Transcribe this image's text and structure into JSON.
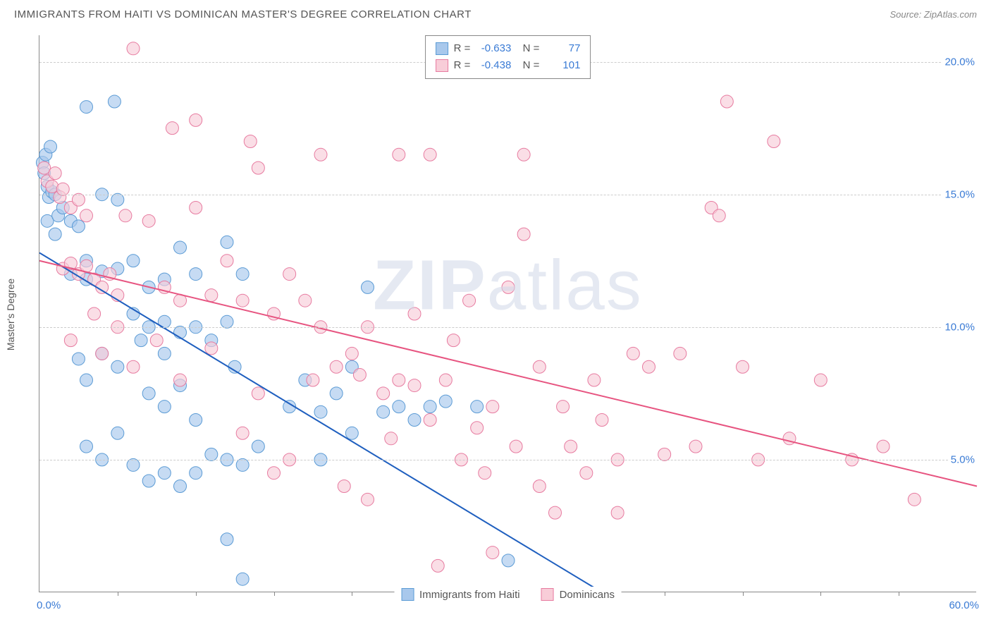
{
  "title": "IMMIGRANTS FROM HAITI VS DOMINICAN MASTER'S DEGREE CORRELATION CHART",
  "source": "Source: ZipAtlas.com",
  "watermark_bold": "ZIP",
  "watermark_light": "atlas",
  "chart": {
    "type": "scatter",
    "ylabel": "Master's Degree",
    "xlim": [
      0,
      60
    ],
    "ylim": [
      0,
      21
    ],
    "xtick_label_0": "0.0%",
    "xtick_label_60": "60.0%",
    "xtick_marks": [
      5,
      10,
      15,
      20,
      25,
      30,
      35,
      40,
      45,
      50,
      55
    ],
    "ytick_labels": [
      {
        "v": 5,
        "label": "5.0%"
      },
      {
        "v": 10,
        "label": "10.0%"
      },
      {
        "v": 15,
        "label": "15.0%"
      },
      {
        "v": 20,
        "label": "20.0%"
      }
    ],
    "colors": {
      "blue_fill": "#a8c8ec",
      "blue_stroke": "#5b9bd5",
      "blue_line": "#1f5fbf",
      "pink_fill": "#f8cdd8",
      "pink_stroke": "#e77ba0",
      "pink_line": "#e75480",
      "axis": "#888888",
      "grid": "#cccccc",
      "tick_text": "#3a7bd5",
      "body_text": "#555555",
      "background": "#ffffff"
    },
    "marker_radius": 9,
    "marker_opacity": 0.65,
    "line_width": 2,
    "series": [
      {
        "key": "haiti",
        "label": "Immigrants from Haiti",
        "color_fill": "#a8c8ec",
        "color_stroke": "#5b9bd5",
        "line_color": "#1f5fbf",
        "R": "-0.633",
        "N": "77",
        "regression": {
          "x1": 0,
          "y1": 12.8,
          "x2": 36,
          "y2": 0
        },
        "points": [
          [
            0.2,
            16.2
          ],
          [
            0.3,
            15.8
          ],
          [
            0.4,
            16.5
          ],
          [
            0.5,
            15.3
          ],
          [
            0.6,
            14.9
          ],
          [
            0.7,
            16.8
          ],
          [
            0.8,
            15.1
          ],
          [
            1.0,
            15.0
          ],
          [
            0.5,
            14.0
          ],
          [
            1.2,
            14.2
          ],
          [
            1.5,
            14.5
          ],
          [
            1.0,
            13.5
          ],
          [
            2.0,
            14.0
          ],
          [
            2.5,
            13.8
          ],
          [
            3.0,
            12.5
          ],
          [
            3.0,
            18.3
          ],
          [
            4.8,
            18.5
          ],
          [
            4.0,
            15.0
          ],
          [
            5.0,
            14.8
          ],
          [
            2.0,
            12.0
          ],
          [
            3.0,
            11.8
          ],
          [
            4.0,
            12.1
          ],
          [
            5.0,
            12.2
          ],
          [
            6.0,
            12.5
          ],
          [
            7.0,
            11.5
          ],
          [
            8.0,
            11.8
          ],
          [
            9.0,
            13.0
          ],
          [
            10.0,
            12.0
          ],
          [
            12.0,
            13.2
          ],
          [
            13.0,
            12.0
          ],
          [
            2.5,
            8.8
          ],
          [
            4.0,
            9.0
          ],
          [
            3.0,
            8.0
          ],
          [
            5.0,
            8.5
          ],
          [
            6.0,
            10.5
          ],
          [
            7.0,
            10.0
          ],
          [
            8.0,
            10.2
          ],
          [
            6.5,
            9.5
          ],
          [
            8.0,
            9.0
          ],
          [
            9.0,
            9.8
          ],
          [
            10.0,
            10.0
          ],
          [
            11.0,
            9.5
          ],
          [
            12.0,
            10.2
          ],
          [
            12.5,
            8.5
          ],
          [
            7.0,
            7.5
          ],
          [
            8.0,
            7.0
          ],
          [
            9.0,
            7.8
          ],
          [
            10.0,
            6.5
          ],
          [
            3.0,
            5.5
          ],
          [
            4.0,
            5.0
          ],
          [
            5.0,
            6.0
          ],
          [
            6.0,
            4.8
          ],
          [
            7.0,
            4.2
          ],
          [
            8.0,
            4.5
          ],
          [
            9.0,
            4.0
          ],
          [
            10.0,
            4.5
          ],
          [
            11.0,
            5.2
          ],
          [
            12.0,
            5.0
          ],
          [
            13.0,
            4.8
          ],
          [
            14.0,
            5.5
          ],
          [
            12.0,
            2.0
          ],
          [
            13.0,
            0.5
          ],
          [
            16.0,
            7.0
          ],
          [
            17.0,
            8.0
          ],
          [
            18.0,
            6.8
          ],
          [
            19.0,
            7.5
          ],
          [
            20.0,
            6.0
          ],
          [
            21.0,
            11.5
          ],
          [
            22.0,
            6.8
          ],
          [
            23.0,
            7.0
          ],
          [
            24.0,
            6.5
          ],
          [
            25.0,
            7.0
          ],
          [
            26.0,
            7.2
          ],
          [
            28.0,
            7.0
          ],
          [
            30.0,
            1.2
          ],
          [
            20.0,
            8.5
          ],
          [
            18.0,
            5.0
          ]
        ]
      },
      {
        "key": "dominican",
        "label": "Dominicans",
        "color_fill": "#f8cdd8",
        "color_stroke": "#e77ba0",
        "line_color": "#e75480",
        "R": "-0.438",
        "N": "101",
        "regression": {
          "x1": 0,
          "y1": 12.5,
          "x2": 60,
          "y2": 4.0
        },
        "points": [
          [
            0.3,
            16.0
          ],
          [
            0.5,
            15.5
          ],
          [
            0.8,
            15.3
          ],
          [
            1.0,
            15.8
          ],
          [
            1.3,
            14.9
          ],
          [
            1.5,
            15.2
          ],
          [
            2.0,
            14.5
          ],
          [
            2.5,
            14.8
          ],
          [
            3.0,
            14.2
          ],
          [
            1.5,
            12.2
          ],
          [
            2.0,
            12.4
          ],
          [
            2.5,
            12.0
          ],
          [
            3.0,
            12.3
          ],
          [
            3.5,
            11.8
          ],
          [
            4.0,
            11.5
          ],
          [
            4.5,
            12.0
          ],
          [
            5.0,
            11.2
          ],
          [
            5.5,
            14.2
          ],
          [
            6.0,
            20.5
          ],
          [
            7.0,
            14.0
          ],
          [
            8.0,
            11.5
          ],
          [
            8.5,
            17.5
          ],
          [
            9.0,
            11.0
          ],
          [
            10.0,
            17.8
          ],
          [
            10.0,
            14.5
          ],
          [
            11.0,
            11.2
          ],
          [
            12.0,
            12.5
          ],
          [
            13.0,
            11.0
          ],
          [
            13.5,
            17.0
          ],
          [
            14.0,
            16.0
          ],
          [
            15.0,
            10.5
          ],
          [
            16.0,
            12.0
          ],
          [
            17.0,
            11.0
          ],
          [
            17.5,
            8.0
          ],
          [
            18.0,
            10.0
          ],
          [
            18.0,
            16.5
          ],
          [
            19.0,
            8.5
          ],
          [
            20.0,
            9.0
          ],
          [
            20.5,
            8.2
          ],
          [
            21.0,
            10.0
          ],
          [
            22.0,
            7.5
          ],
          [
            23.0,
            8.0
          ],
          [
            23.0,
            16.5
          ],
          [
            24.0,
            7.8
          ],
          [
            25.0,
            6.5
          ],
          [
            25.0,
            16.5
          ],
          [
            26.0,
            8.0
          ],
          [
            27.0,
            5.0
          ],
          [
            28.0,
            6.2
          ],
          [
            29.0,
            7.0
          ],
          [
            30.0,
            11.5
          ],
          [
            31.0,
            16.5
          ],
          [
            31.0,
            13.5
          ],
          [
            32.0,
            8.5
          ],
          [
            33.0,
            3.0
          ],
          [
            34.0,
            5.5
          ],
          [
            35.0,
            4.5
          ],
          [
            36.0,
            6.5
          ],
          [
            37.0,
            5.0
          ],
          [
            38.0,
            9.0
          ],
          [
            39.0,
            8.5
          ],
          [
            40.0,
            5.2
          ],
          [
            41.0,
            9.0
          ],
          [
            42.0,
            5.5
          ],
          [
            43.0,
            14.5
          ],
          [
            43.5,
            14.2
          ],
          [
            44.0,
            18.5
          ],
          [
            45.0,
            8.5
          ],
          [
            46.0,
            5.0
          ],
          [
            47.0,
            17.0
          ],
          [
            48.0,
            5.8
          ],
          [
            50.0,
            8.0
          ],
          [
            52.0,
            5.0
          ],
          [
            54.0,
            5.5
          ],
          [
            56.0,
            3.5
          ],
          [
            25.5,
            1.0
          ],
          [
            29.0,
            1.5
          ],
          [
            15.0,
            4.5
          ],
          [
            16.0,
            5.0
          ],
          [
            6.0,
            8.5
          ],
          [
            7.5,
            9.5
          ],
          [
            9.0,
            8.0
          ],
          [
            11.0,
            9.2
          ],
          [
            4.0,
            9.0
          ],
          [
            5.0,
            10.0
          ],
          [
            3.5,
            10.5
          ],
          [
            2.0,
            9.5
          ],
          [
            13.0,
            6.0
          ],
          [
            14.0,
            7.5
          ],
          [
            19.5,
            4.0
          ],
          [
            21.0,
            3.5
          ],
          [
            22.5,
            5.8
          ],
          [
            24.0,
            10.5
          ],
          [
            26.5,
            9.5
          ],
          [
            27.5,
            11.0
          ],
          [
            33.5,
            7.0
          ],
          [
            35.5,
            8.0
          ],
          [
            37.0,
            3.0
          ],
          [
            30.5,
            5.5
          ],
          [
            32.0,
            4.0
          ],
          [
            28.5,
            4.5
          ]
        ]
      }
    ]
  }
}
